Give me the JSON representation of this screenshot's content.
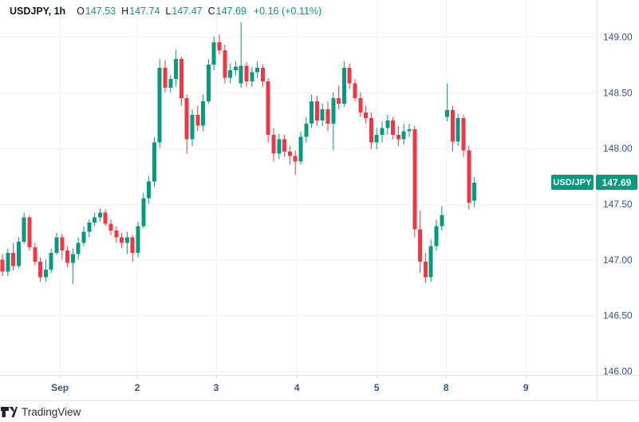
{
  "header": {
    "symbol": "USDJPY, 1h",
    "ohlc": [
      {
        "k": "O",
        "v": "147.53"
      },
      {
        "k": "H",
        "v": "147.74"
      },
      {
        "k": "L",
        "v": "147.47"
      },
      {
        "k": "C",
        "v": "147.69"
      }
    ],
    "change": "+0.16 (+0.11%)"
  },
  "price_badge": {
    "symbol": "USD/JPY",
    "price": "147.69",
    "value": 147.69
  },
  "footer": {
    "brand": "TradingView"
  },
  "colors": {
    "up": "#089981",
    "down": "#F23645",
    "grid": "#F0F3FA",
    "border": "#E0E3EB",
    "tick": "#D1D4DC",
    "axis_text": "#36518C",
    "header_text": "#131722",
    "badge_bg": "#089981",
    "badge_text": "#FFFFFF",
    "logo": "#1E222D"
  },
  "chart_data": {
    "type": "candlestick",
    "symbol": "USDJPY",
    "interval": "1h",
    "title": "USDJPY, 1h",
    "last": {
      "open": 147.53,
      "high": 147.74,
      "low": 147.47,
      "close": 147.69,
      "change": "+0.16 (+0.11%)"
    },
    "y_axis": {
      "max": 149.0,
      "min": 146.0,
      "ticks": [
        149.0,
        148.5,
        148.0,
        147.5,
        147.0,
        146.5,
        146.0
      ]
    },
    "x_axis": {
      "ticks": [
        {
          "label": "Sep",
          "pos": 10.6
        },
        {
          "label": "2",
          "pos": 24.85
        },
        {
          "label": "3",
          "pos": 39.4
        },
        {
          "label": "4",
          "pos": 54.3
        },
        {
          "label": "5",
          "pos": 69.0
        },
        {
          "label": "8",
          "pos": 81.8
        },
        {
          "label": "9",
          "pos": 96.5
        }
      ]
    },
    "candles": [
      [
        147.0,
        147.05,
        146.85,
        146.89
      ],
      [
        146.89,
        147.1,
        146.85,
        147.06
      ],
      [
        147.06,
        147.15,
        146.9,
        146.94
      ],
      [
        146.94,
        147.2,
        146.92,
        147.16
      ],
      [
        147.16,
        147.42,
        147.14,
        147.38
      ],
      [
        147.38,
        147.4,
        147.08,
        147.11
      ],
      [
        147.11,
        147.15,
        146.95,
        146.98
      ],
      [
        146.98,
        147.02,
        146.8,
        146.84
      ],
      [
        146.84,
        147.0,
        146.8,
        146.91
      ],
      [
        146.91,
        147.1,
        146.88,
        147.06
      ],
      [
        147.06,
        147.24,
        147.04,
        147.2
      ],
      [
        147.2,
        147.23,
        147.0,
        147.08
      ],
      [
        147.08,
        147.12,
        146.93,
        146.97
      ],
      [
        146.97,
        147.1,
        146.78,
        147.05
      ],
      [
        147.05,
        147.2,
        147.0,
        147.15
      ],
      [
        147.15,
        147.3,
        147.12,
        147.25
      ],
      [
        147.25,
        147.36,
        147.2,
        147.33
      ],
      [
        147.33,
        147.42,
        147.3,
        147.38
      ],
      [
        147.38,
        147.46,
        147.34,
        147.42
      ],
      [
        147.42,
        147.45,
        147.3,
        147.32
      ],
      [
        147.32,
        147.36,
        147.22,
        147.26
      ],
      [
        147.26,
        147.3,
        147.15,
        147.2
      ],
      [
        147.2,
        147.24,
        147.1,
        147.15
      ],
      [
        147.15,
        147.25,
        147.05,
        147.2
      ],
      [
        147.2,
        147.22,
        146.98,
        147.06
      ],
      [
        147.06,
        147.34,
        147.02,
        147.3
      ],
      [
        147.3,
        147.6,
        147.28,
        147.55
      ],
      [
        147.55,
        147.75,
        147.5,
        147.7
      ],
      [
        147.7,
        148.1,
        147.65,
        148.05
      ],
      [
        148.05,
        148.8,
        148.0,
        148.72
      ],
      [
        148.72,
        148.79,
        148.5,
        148.54
      ],
      [
        148.54,
        148.66,
        148.5,
        148.62
      ],
      [
        148.62,
        148.88,
        148.55,
        148.8
      ],
      [
        148.8,
        148.82,
        148.38,
        148.45
      ],
      [
        148.45,
        148.48,
        147.95,
        148.08
      ],
      [
        148.08,
        148.35,
        148.02,
        148.3
      ],
      [
        148.3,
        148.38,
        148.15,
        148.2
      ],
      [
        148.2,
        148.48,
        148.15,
        148.42
      ],
      [
        148.42,
        148.8,
        148.4,
        148.75
      ],
      [
        148.75,
        149.0,
        148.7,
        148.95
      ],
      [
        148.95,
        149.02,
        148.84,
        148.88
      ],
      [
        148.88,
        148.93,
        148.58,
        148.63
      ],
      [
        148.63,
        148.76,
        148.58,
        148.7
      ],
      [
        148.7,
        148.78,
        148.65,
        148.73
      ],
      [
        148.58,
        149.13,
        148.54,
        148.74
      ],
      [
        148.74,
        148.77,
        148.55,
        148.6
      ],
      [
        148.6,
        148.73,
        148.55,
        148.68
      ],
      [
        148.68,
        148.78,
        148.63,
        148.72
      ],
      [
        148.72,
        148.75,
        148.55,
        148.6
      ],
      [
        148.6,
        148.63,
        148.05,
        148.12
      ],
      [
        148.12,
        148.18,
        147.88,
        147.95
      ],
      [
        147.95,
        148.13,
        147.9,
        148.08
      ],
      [
        148.08,
        148.12,
        147.92,
        147.97
      ],
      [
        147.97,
        148.02,
        147.85,
        147.93
      ],
      [
        147.93,
        147.98,
        147.76,
        147.88
      ],
      [
        147.88,
        148.15,
        147.85,
        148.1
      ],
      [
        148.1,
        148.28,
        148.05,
        148.22
      ],
      [
        148.22,
        148.48,
        148.18,
        148.42
      ],
      [
        148.42,
        148.47,
        148.2,
        148.25
      ],
      [
        148.25,
        148.4,
        148.2,
        148.35
      ],
      [
        148.35,
        148.42,
        148.15,
        148.22
      ],
      [
        148.22,
        148.5,
        147.98,
        148.45
      ],
      [
        148.45,
        148.56,
        148.35,
        148.4
      ],
      [
        148.4,
        148.78,
        148.37,
        148.72
      ],
      [
        148.72,
        148.76,
        148.53,
        148.58
      ],
      [
        148.58,
        148.62,
        148.42,
        148.45
      ],
      [
        148.45,
        148.5,
        148.28,
        148.32
      ],
      [
        148.32,
        148.38,
        148.22,
        148.27
      ],
      [
        148.27,
        148.32,
        147.99,
        148.05
      ],
      [
        148.05,
        148.18,
        147.99,
        148.12
      ],
      [
        148.12,
        148.24,
        148.05,
        148.18
      ],
      [
        148.18,
        148.3,
        148.12,
        148.25
      ],
      [
        148.25,
        148.28,
        148.08,
        148.12
      ],
      [
        148.12,
        148.2,
        148.02,
        148.08
      ],
      [
        148.08,
        148.22,
        148.03,
        148.15
      ],
      [
        148.15,
        148.22,
        148.1,
        148.17
      ],
      [
        148.17,
        148.2,
        147.2,
        147.27
      ],
      [
        147.27,
        147.44,
        146.88,
        146.98
      ],
      [
        146.98,
        147.06,
        146.79,
        146.84
      ],
      [
        146.84,
        147.18,
        146.8,
        147.12
      ],
      [
        147.12,
        147.36,
        147.08,
        147.3
      ],
      [
        147.3,
        147.48,
        147.26,
        147.4
      ],
      [
        148.28,
        148.58,
        148.24,
        148.34
      ],
      [
        148.34,
        148.38,
        147.97,
        148.06
      ],
      [
        148.06,
        148.31,
        148.02,
        148.27
      ],
      [
        148.27,
        148.3,
        147.92,
        147.98
      ],
      [
        147.98,
        148.02,
        147.45,
        147.51
      ],
      [
        147.53,
        147.74,
        147.47,
        147.69
      ]
    ]
  }
}
